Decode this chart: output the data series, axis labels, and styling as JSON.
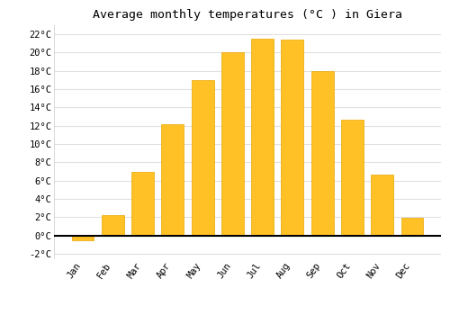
{
  "title": "Average monthly temperatures (°C ) in Giera",
  "months": [
    "Jan",
    "Feb",
    "Mar",
    "Apr",
    "May",
    "Jun",
    "Jul",
    "Aug",
    "Sep",
    "Oct",
    "Nov",
    "Dec"
  ],
  "values": [
    -0.5,
    2.2,
    7.0,
    12.2,
    17.0,
    20.0,
    21.5,
    21.4,
    18.0,
    12.7,
    6.7,
    1.9
  ],
  "bar_color": "#FFC125",
  "bar_edge_color": "#E8A800",
  "background_color": "#FFFFFF",
  "plot_bg_color": "#FFFFFF",
  "grid_color": "#E0E0E0",
  "ylim": [
    -2.5,
    23
  ],
  "yticks": [
    -2,
    0,
    2,
    4,
    6,
    8,
    10,
    12,
    14,
    16,
    18,
    20,
    22
  ],
  "title_fontsize": 9.5,
  "tick_fontsize": 7.5
}
